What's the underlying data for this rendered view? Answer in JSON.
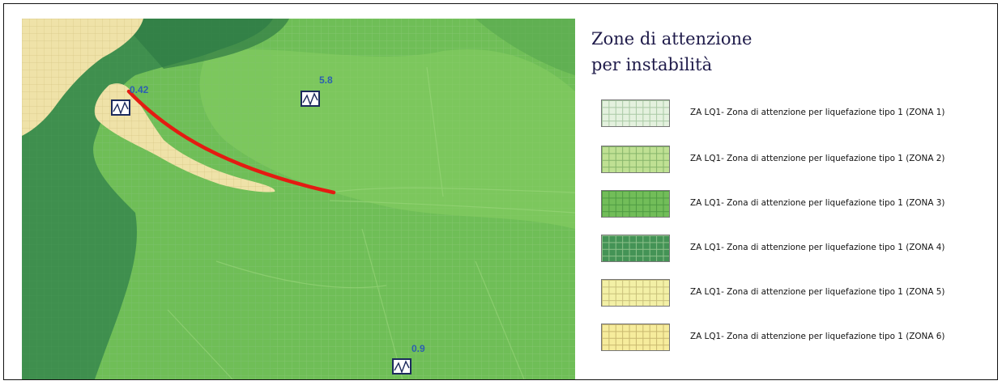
{
  "legend": {
    "title_line1": "Zone di attenzione",
    "title_line2": "per instabilità",
    "items": [
      {
        "label": "ZA LQ1- Zona di attenzione per liquefazione tipo 1 (ZONA 1)",
        "color": "#e4f1de",
        "grid": "#a9c9a4"
      },
      {
        "label": "ZA LQ1- Zona di attenzione per liquefazione tipo 1 (ZONA 2)",
        "color": "#bfe093",
        "grid": "#86b46a"
      },
      {
        "label": "ZA LQ1- Zona di attenzione per liquefazione tipo 1 (ZONA 3)",
        "color": "#72bd59",
        "grid": "#4f9a43"
      },
      {
        "label": "ZA LQ1- Zona di attenzione per liquefazione tipo 1 (ZONA 4)",
        "color": "#449356",
        "grid": "#8cc08a"
      },
      {
        "label": "ZA LQ1- Zona di attenzione per liquefazione tipo 1 (ZONA 5)",
        "color": "#f3f0a6",
        "grid": "#c8c07a"
      },
      {
        "label": "ZA LQ1- Zona di attenzione per liquefazione tipo 1 (ZONA 6)",
        "color": "#f6ec9c",
        "grid": "#c9b86f"
      }
    ]
  },
  "map": {
    "stations": [
      {
        "value": "0.42",
        "icon": "seismic-station-icon"
      },
      {
        "value": "5.8",
        "icon": "seismic-station-icon"
      },
      {
        "value": "0.9",
        "icon": "seismic-station-icon"
      }
    ],
    "colors": {
      "base_green": "#6fbe57",
      "dark_green": "#3f8f4e",
      "light_green": "#8fcf6a",
      "sand_zone": "#efe2a8",
      "section_line": "#e41b12",
      "station_label": "#2c5fb0"
    }
  }
}
